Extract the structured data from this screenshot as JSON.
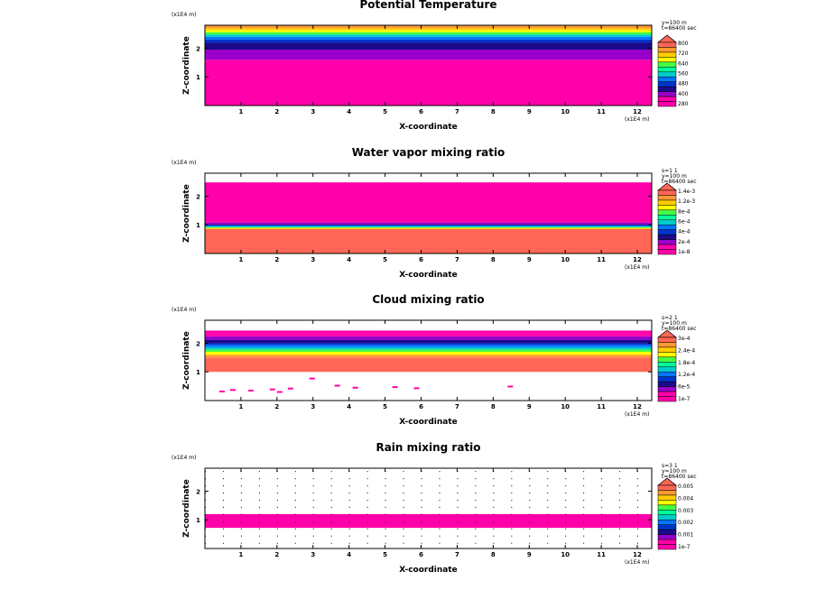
{
  "chart_data": [
    {
      "type": "heatmap",
      "title": "Potential Temperature",
      "xlabel": "X-coordinate",
      "ylabel": "Z-coordinate",
      "x_scale_label": "(x1E4 m)",
      "z_scale_label": "(x1E4 m)",
      "xlim": [
        0,
        12.4
      ],
      "zlim": [
        0,
        2.8
      ],
      "x_ticks": [
        "1",
        "2",
        "3",
        "4",
        "5",
        "6",
        "7",
        "8",
        "9",
        "10",
        "11",
        "12"
      ],
      "z_ticks": [
        "1",
        "2"
      ],
      "info_lines": [
        "y=100 m",
        "t=86400 sec"
      ],
      "colorbar_labels": [
        "280",
        "400",
        "480",
        "560",
        "640",
        "720",
        "800"
      ],
      "colors": [
        "#ff00aa",
        "#ff00aa",
        "#9900cc",
        "#1b0a8c",
        "#0033cc",
        "#0077ff",
        "#00cccc",
        "#00ff99",
        "#44ff44",
        "#ffff00",
        "#ffcc00",
        "#ff9933",
        "#ff6655"
      ],
      "bands": [
        {
          "z0": 0.0,
          "z1": 1.6,
          "color": "#ff00aa"
        },
        {
          "z0": 1.6,
          "z1": 1.95,
          "color": "#9900cc"
        },
        {
          "z0": 1.95,
          "z1": 2.2,
          "color": "#1b0a8c"
        },
        {
          "z0": 2.2,
          "z1": 2.3,
          "color": "#0033cc"
        },
        {
          "z0": 2.3,
          "z1": 2.4,
          "color": "#0077ff"
        },
        {
          "z0": 2.4,
          "z1": 2.48,
          "color": "#00cccc"
        },
        {
          "z0": 2.48,
          "z1": 2.56,
          "color": "#44ff44"
        },
        {
          "z0": 2.56,
          "z1": 2.63,
          "color": "#ffff00"
        },
        {
          "z0": 2.63,
          "z1": 2.7,
          "color": "#ffcc00"
        },
        {
          "z0": 2.7,
          "z1": 2.8,
          "color": "#ff9933"
        }
      ],
      "speckles": []
    },
    {
      "type": "heatmap",
      "title": "Water vapor mixing ratio",
      "xlabel": "X-coordinate",
      "ylabel": "Z-coordinate",
      "x_scale_label": "(x1E4 m)",
      "z_scale_label": "(x1E4 m)",
      "xlim": [
        0,
        12.4
      ],
      "zlim": [
        0,
        2.8
      ],
      "x_ticks": [
        "1",
        "2",
        "3",
        "4",
        "5",
        "6",
        "7",
        "8",
        "9",
        "10",
        "11",
        "12"
      ],
      "z_ticks": [
        "1",
        "2"
      ],
      "info_lines": [
        "s=1 1",
        "y=100 m",
        "t=86400 sec"
      ],
      "colorbar_labels": [
        "1e-8",
        "2e-4",
        "4e-4",
        "6e-4",
        "8e-4",
        "1.2e-3",
        "1.4e-3"
      ],
      "colors": [
        "#ff00aa",
        "#ff00aa",
        "#9900cc",
        "#1b0a8c",
        "#0033cc",
        "#0077ff",
        "#00cccc",
        "#00ff99",
        "#44ff44",
        "#ffff00",
        "#ffcc00",
        "#ff9933",
        "#ff6655"
      ],
      "bands": [
        {
          "z0": 0.0,
          "z1": 0.85,
          "color": "#ff6655"
        },
        {
          "z0": 0.85,
          "z1": 0.9,
          "color": "#ffcc00"
        },
        {
          "z0": 0.9,
          "z1": 0.94,
          "color": "#00ff99"
        },
        {
          "z0": 0.94,
          "z1": 0.98,
          "color": "#0077ff"
        },
        {
          "z0": 0.98,
          "z1": 1.02,
          "color": "#1b0a8c"
        },
        {
          "z0": 1.02,
          "z1": 1.08,
          "color": "#9900cc"
        },
        {
          "z0": 1.08,
          "z1": 2.48,
          "color": "#ff00aa"
        }
      ],
      "speckles": []
    },
    {
      "type": "heatmap",
      "title": "Cloud mixing ratio",
      "xlabel": "X-coordinate",
      "ylabel": "Z-coordinate",
      "x_scale_label": "(x1E4 m)",
      "z_scale_label": "(x1E4 m)",
      "xlim": [
        0,
        12.4
      ],
      "zlim": [
        0,
        2.8
      ],
      "x_ticks": [
        "1",
        "2",
        "3",
        "4",
        "5",
        "6",
        "7",
        "8",
        "9",
        "10",
        "11",
        "12"
      ],
      "z_ticks": [
        "1",
        "2"
      ],
      "info_lines": [
        "s=2 1",
        "y=100 m",
        "t=86400 sec"
      ],
      "colorbar_labels": [
        "1e-7",
        "6e-5",
        "1.2e-4",
        "1.8e-4",
        "2.4e-4",
        "3e-4"
      ],
      "colors": [
        "#ff00aa",
        "#ff00aa",
        "#9900cc",
        "#1b0a8c",
        "#0033cc",
        "#0077ff",
        "#00cccc",
        "#00ff99",
        "#44ff44",
        "#ffff00",
        "#ffcc00",
        "#ff9933",
        "#ff6655"
      ],
      "bands": [
        {
          "z0": 1.0,
          "z1": 1.5,
          "color": "#ff6655"
        },
        {
          "z0": 1.5,
          "z1": 1.6,
          "color": "#ff9933"
        },
        {
          "z0": 1.6,
          "z1": 1.7,
          "color": "#ffff00"
        },
        {
          "z0": 1.7,
          "z1": 1.78,
          "color": "#44ff44"
        },
        {
          "z0": 1.78,
          "z1": 1.86,
          "color": "#00cccc"
        },
        {
          "z0": 1.86,
          "z1": 1.94,
          "color": "#0077ff"
        },
        {
          "z0": 1.94,
          "z1": 2.0,
          "color": "#0033cc"
        },
        {
          "z0": 2.0,
          "z1": 2.12,
          "color": "#1b0a8c"
        },
        {
          "z0": 2.12,
          "z1": 2.24,
          "color": "#9900cc"
        },
        {
          "z0": 2.24,
          "z1": 2.34,
          "color": "#ff00aa"
        },
        {
          "z0": 2.34,
          "z1": 2.44,
          "color": "#ff00aa"
        }
      ],
      "speckles": [
        {
          "x": 0.4,
          "z": 0.35
        },
        {
          "x": 0.7,
          "z": 0.4
        },
        {
          "x": 1.2,
          "z": 0.38
        },
        {
          "x": 1.8,
          "z": 0.42
        },
        {
          "x": 2.0,
          "z": 0.33
        },
        {
          "x": 2.3,
          "z": 0.45
        },
        {
          "x": 2.9,
          "z": 0.8
        },
        {
          "x": 3.6,
          "z": 0.55
        },
        {
          "x": 4.1,
          "z": 0.48
        },
        {
          "x": 5.2,
          "z": 0.5
        },
        {
          "x": 5.8,
          "z": 0.46
        },
        {
          "x": 8.4,
          "z": 0.52
        }
      ]
    },
    {
      "type": "heatmap",
      "title": "Rain mixing ratio",
      "xlabel": "X-coordinate",
      "ylabel": "Z-coordinate",
      "x_scale_label": "(x1E4 m)",
      "z_scale_label": "(x1E4 m)",
      "xlim": [
        0,
        12.4
      ],
      "zlim": [
        0,
        2.8
      ],
      "x_ticks": [
        "1",
        "2",
        "3",
        "4",
        "5",
        "6",
        "7",
        "8",
        "9",
        "10",
        "11",
        "12"
      ],
      "z_ticks": [
        "1",
        "2"
      ],
      "info_lines": [
        "s=3 1",
        "y=100 m",
        "t=86400 sec"
      ],
      "colorbar_labels": [
        "1e-7",
        "0.001",
        "0.002",
        "0.003",
        "0.004",
        "0.005"
      ],
      "colors": [
        "#ff00aa",
        "#ff00aa",
        "#9900cc",
        "#1b0a8c",
        "#0033cc",
        "#0077ff",
        "#00cccc",
        "#00ff99",
        "#44ff44",
        "#ffff00",
        "#ffcc00",
        "#ff9933",
        "#ff6655"
      ],
      "bands": [
        {
          "z0": 0.72,
          "z1": 1.2,
          "color": "#ff00aa"
        }
      ],
      "speckles": []
    }
  ]
}
